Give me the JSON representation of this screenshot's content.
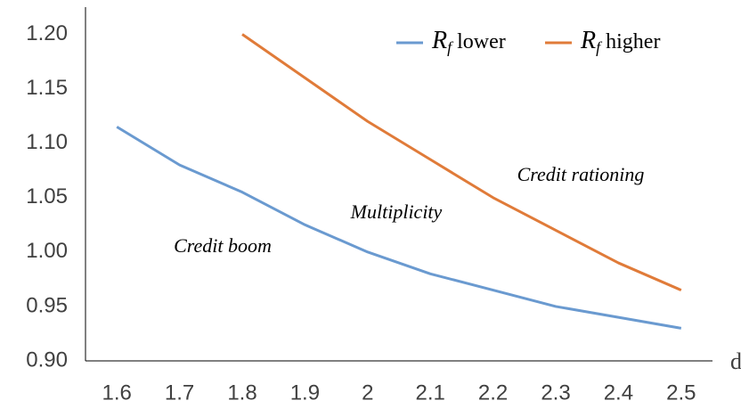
{
  "chart_data": {
    "type": "line",
    "x": [
      1.6,
      1.7,
      1.8,
      1.9,
      2,
      2.1,
      2.2,
      2.3,
      2.4,
      2.5
    ],
    "series": [
      {
        "name": "Rf lower",
        "color": "#6a9ad0",
        "values": [
          1.115,
          1.08,
          1.055,
          1.025,
          1.0,
          0.98,
          0.965,
          0.95,
          0.94,
          0.93
        ]
      },
      {
        "name": "Rf higher",
        "color": "#e07b39",
        "values": [
          null,
          null,
          1.2,
          1.16,
          1.12,
          1.085,
          1.05,
          1.02,
          0.99,
          0.965
        ]
      }
    ],
    "xlim": [
      1.55,
      2.55
    ],
    "xticks": [
      1.6,
      1.7,
      1.8,
      1.9,
      2,
      2.1,
      2.2,
      2.3,
      2.4,
      2.5
    ],
    "ylim": [
      0.9,
      1.225
    ],
    "yticks": [
      {
        "value": 0.9,
        "label": "0.90"
      },
      {
        "value": 0.95,
        "label": "0.95"
      },
      {
        "value": 1.0,
        "label": "1.00"
      },
      {
        "value": 1.05,
        "label": "1.05"
      },
      {
        "value": 1.1,
        "label": "1.10"
      },
      {
        "value": 1.15,
        "label": "1.15"
      },
      {
        "value": 1.2,
        "label": "1.20"
      }
    ],
    "xlabel": "d",
    "annotations": [
      "Credit boom",
      "Multiplicity",
      "Credit rationing"
    ],
    "legend": "upper right",
    "grid": false
  }
}
